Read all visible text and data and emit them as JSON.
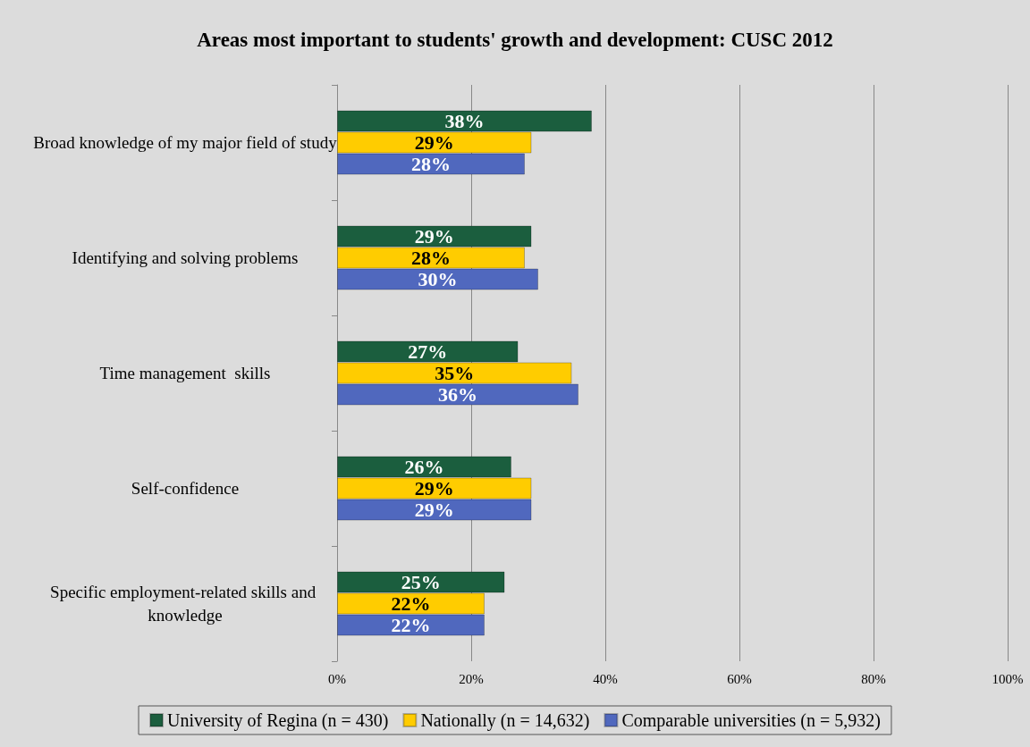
{
  "chart_data": {
    "type": "bar",
    "orientation": "horizontal",
    "title": "Areas most important to students' growth and development: CUSC 2012",
    "categories": [
      "Broad knowledge of my major field of study",
      "Identifying and solving problems",
      "Time management  skills",
      "Self-confidence",
      "Specific employment-related skills and knowledge"
    ],
    "series": [
      {
        "name": "University of Regina (n = 430)",
        "color": "#1b5e3e",
        "values": [
          38,
          29,
          27,
          26,
          25
        ],
        "value_labels": [
          "38%",
          "29%",
          "27%",
          "26%",
          "25%"
        ]
      },
      {
        "name": "Nationally (n = 14,632)",
        "color": "#ffcc00",
        "values": [
          29,
          28,
          35,
          29,
          22
        ],
        "value_labels": [
          "29%",
          "28%",
          "35%",
          "29%",
          "22%"
        ]
      },
      {
        "name": "Comparable universities (n = 5,932)",
        "color": "#5068be",
        "values": [
          28,
          30,
          36,
          29,
          22
        ],
        "value_labels": [
          "28%",
          "30%",
          "36%",
          "29%",
          "22%"
        ]
      }
    ],
    "xlim": [
      0,
      100
    ],
    "xticks": [
      {
        "value": 0,
        "label": "0%"
      },
      {
        "value": 20,
        "label": "20%"
      },
      {
        "value": 40,
        "label": "40%"
      },
      {
        "value": 60,
        "label": "60%"
      },
      {
        "value": 80,
        "label": "80%"
      },
      {
        "value": 100,
        "label": "100%"
      }
    ],
    "grid": "x",
    "legend": "bottom"
  }
}
